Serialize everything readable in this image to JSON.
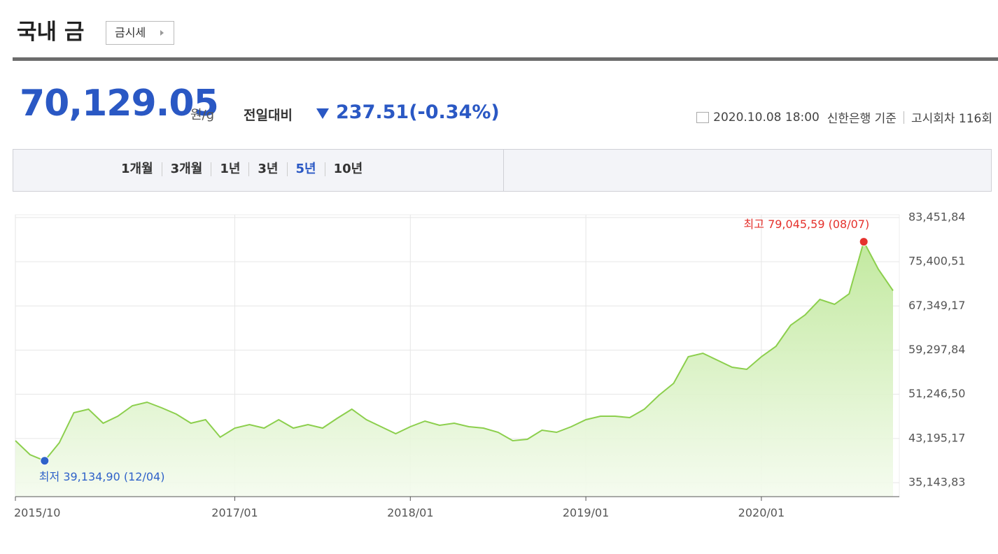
{
  "header": {
    "title": "국내 금",
    "button": "금시세"
  },
  "price": {
    "value": "70,129.05",
    "unit": "원/g",
    "change_label": "전일대비",
    "change": "237.51(-0.34%)"
  },
  "info": {
    "datetime": "2020.10.08 18:00",
    "source": "신한은행 기준",
    "round": "고시회차 116회"
  },
  "tabs": {
    "items": [
      "1개월",
      "3개월",
      "1년",
      "3년",
      "5년",
      "10년"
    ],
    "active": 4
  },
  "chart_data": {
    "type": "line",
    "x": [
      "2015/10",
      "2015/11",
      "2015/12",
      "2016/01",
      "2016/02",
      "2016/03",
      "2016/04",
      "2016/05",
      "2016/06",
      "2016/07",
      "2016/08",
      "2016/09",
      "2016/10",
      "2016/11",
      "2016/12",
      "2017/01",
      "2017/02",
      "2017/03",
      "2017/04",
      "2017/05",
      "2017/06",
      "2017/07",
      "2017/08",
      "2017/09",
      "2017/10",
      "2017/11",
      "2017/12",
      "2018/01",
      "2018/02",
      "2018/03",
      "2018/04",
      "2018/05",
      "2018/06",
      "2018/07",
      "2018/08",
      "2018/09",
      "2018/10",
      "2018/11",
      "2018/12",
      "2019/01",
      "2019/02",
      "2019/03",
      "2019/04",
      "2019/05",
      "2019/06",
      "2019/07",
      "2019/08",
      "2019/09",
      "2019/10",
      "2019/11",
      "2019/12",
      "2020/01",
      "2020/02",
      "2020/03",
      "2020/04",
      "2020/05",
      "2020/06",
      "2020/07",
      "2020/08",
      "2020/09",
      "2020/10"
    ],
    "series": [
      {
        "color": "#8ccf4d",
        "values": [
          42792,
          40243,
          39134.9,
          42411,
          47891,
          48528,
          45979,
          47254,
          49166,
          49803,
          48784,
          47637,
          45979,
          46617,
          43430,
          45087,
          45724,
          45087,
          46617,
          45087,
          45724,
          45087,
          46871,
          48528,
          46617,
          45342,
          44067,
          45342,
          46362,
          45597,
          45979,
          45342,
          45087,
          44322,
          42792,
          43047,
          44704,
          44322,
          45342,
          46617,
          47254,
          47254,
          47000,
          48528,
          51077,
          53244,
          58087,
          58725,
          57450,
          56175,
          55793,
          58087,
          59999,
          63823,
          65735,
          68539,
          67647,
          69559,
          79045.59,
          74020,
          70129.05
        ]
      }
    ],
    "ylim": [
      35143.83,
      83451.84
    ],
    "yticks": [
      {
        "value": 35143.83,
        "label": "35,143,83"
      },
      {
        "value": 43195.17,
        "label": "43,195,17"
      },
      {
        "value": 51246.5,
        "label": "51,246,50"
      },
      {
        "value": 59297.84,
        "label": "59,297,84"
      },
      {
        "value": 67349.17,
        "label": "67,349,17"
      },
      {
        "value": 75400.51,
        "label": "75,400,51"
      },
      {
        "value": 83451.84,
        "label": "83,451,84"
      }
    ],
    "xticks": [
      "2015/10",
      "2017/01",
      "2018/01",
      "2019/01",
      "2020/01"
    ],
    "grid": true,
    "annotations": [
      {
        "text": "최고 79,045,59 (08/07)",
        "x": "2020/08",
        "color": "#e5322d"
      },
      {
        "text": "최저 39,134,90 (12/04)",
        "x": "2015/12",
        "color": "#2f62c9"
      }
    ]
  }
}
